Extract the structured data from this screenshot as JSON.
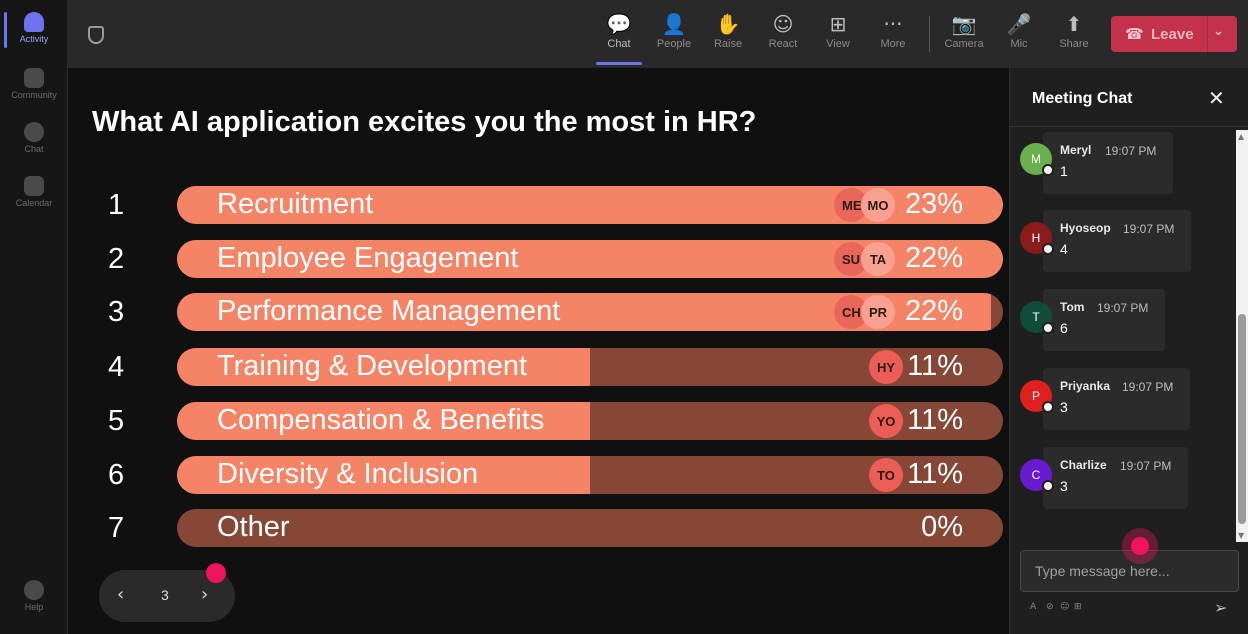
{
  "rail": {
    "items": [
      {
        "label": "Activity",
        "icon": "bell-icon",
        "active": true
      },
      {
        "label": "Community",
        "icon": "community-icon"
      },
      {
        "label": "Chat",
        "icon": "chat-icon"
      },
      {
        "label": "Calendar",
        "icon": "calendar-icon"
      }
    ],
    "help": {
      "label": "Help",
      "icon": "help-icon"
    }
  },
  "toolbar": {
    "items": [
      {
        "label": "Chat",
        "glyph": "💬",
        "icon": "chat-icon",
        "active": true
      },
      {
        "label": "People",
        "glyph": "👤",
        "icon": "people-icon"
      },
      {
        "label": "Raise",
        "glyph": "✋",
        "icon": "raise-hand-icon"
      },
      {
        "label": "React",
        "glyph": "☺",
        "icon": "react-icon"
      },
      {
        "label": "View",
        "glyph": "⊞",
        "icon": "view-icon"
      },
      {
        "label": "More",
        "glyph": "···",
        "icon": "more-icon"
      },
      {
        "label": "Camera",
        "glyph": "📷",
        "icon": "camera-off-icon"
      },
      {
        "label": "Mic",
        "glyph": "🎤",
        "icon": "mic-icon"
      },
      {
        "label": "Share",
        "glyph": "⬆",
        "icon": "share-icon"
      }
    ],
    "leave": {
      "label": "Leave",
      "glyph": "☎",
      "chevron": "⌄",
      "color": "#c4314b"
    }
  },
  "poll": {
    "question": "What AI application excites you the most in HR?",
    "colors": {
      "fill": "#f58467",
      "track": "#874737"
    },
    "options": [
      {
        "num": "1",
        "label": "Recruitment",
        "pct": "23%",
        "fraction": 1.0,
        "avatars": [
          "ME",
          "MO"
        ]
      },
      {
        "num": "2",
        "label": "Employee Engagement",
        "pct": "22%",
        "fraction": 1.0,
        "avatars": [
          "SU",
          "TA"
        ]
      },
      {
        "num": "3",
        "label": "Performance Management",
        "pct": "22%",
        "fraction": 0.985,
        "avatars": [
          "CH",
          "PR"
        ]
      },
      {
        "num": "4",
        "label": "Training & Development",
        "pct": "11%",
        "fraction": 0.5,
        "avatars": [
          "HY"
        ]
      },
      {
        "num": "5",
        "label": "Compensation & Benefits",
        "pct": "11%",
        "fraction": 0.5,
        "avatars": [
          "YO"
        ]
      },
      {
        "num": "6",
        "label": "Diversity & Inclusion",
        "pct": "11%",
        "fraction": 0.5,
        "avatars": [
          "TO"
        ]
      },
      {
        "num": "7",
        "label": "Other",
        "pct": "0%",
        "fraction": 0.0,
        "avatars": []
      }
    ],
    "pager": {
      "page": "3",
      "prev": "‹",
      "next": "›"
    }
  },
  "chat": {
    "title": "Meeting Chat",
    "close": "✕",
    "messages": [
      {
        "name": "Meryl",
        "time": "19:07 PM",
        "text": "1",
        "initial": "M",
        "color": "#6ab04c"
      },
      {
        "name": "Hyoseop",
        "time": "19:07 PM",
        "text": "4",
        "initial": "H",
        "color": "#8b1a1a"
      },
      {
        "name": "Tom",
        "time": "19:07 PM",
        "text": "6",
        "initial": "T",
        "color": "#0f4d3a"
      },
      {
        "name": "Priyanka",
        "time": "19:07 PM",
        "text": "3",
        "initial": "P",
        "color": "#e0201f"
      },
      {
        "name": "Charlize",
        "time": "19:07 PM",
        "text": "3",
        "initial": "C",
        "color": "#6a1bd1"
      }
    ],
    "input_placeholder": "Type message here...",
    "format_icons": [
      "A",
      "⊘",
      "☺",
      "⊞"
    ],
    "send": "➢"
  }
}
